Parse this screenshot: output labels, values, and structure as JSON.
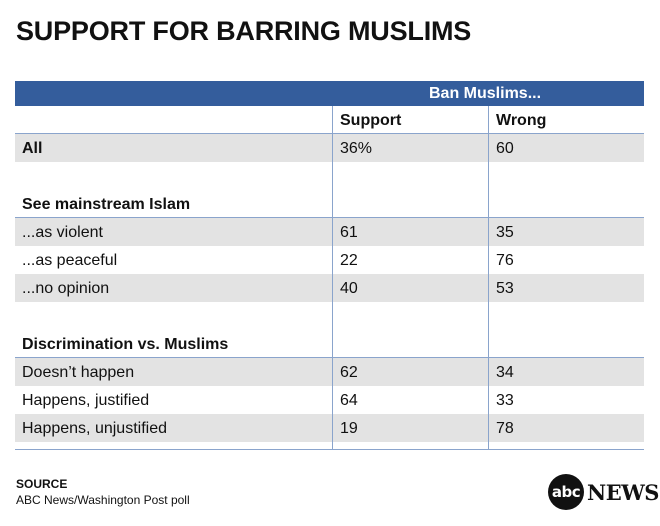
{
  "title": "SUPPORT FOR BARRING MUSLIMS",
  "chart_data": {
    "type": "table",
    "title": "SUPPORT FOR BARRING MUSLIMS",
    "group_header": "Ban Muslims...",
    "columns": [
      "",
      "Support",
      "Wrong"
    ],
    "rows": [
      {
        "label": "All",
        "support": "36%",
        "wrong": "60",
        "bold": true,
        "shaded": true
      },
      {
        "label": "",
        "support": "",
        "wrong": "",
        "spacer": true
      },
      {
        "label": "See mainstream Islam",
        "support": "",
        "wrong": "",
        "bold": true,
        "section": true
      },
      {
        "label": "...as violent",
        "support": "61",
        "wrong": "35",
        "shaded": true
      },
      {
        "label": "...as peaceful",
        "support": "22",
        "wrong": "76"
      },
      {
        "label": "...no opinion",
        "support": "40",
        "wrong": "53",
        "shaded": true
      },
      {
        "label": "",
        "support": "",
        "wrong": "",
        "spacer": true
      },
      {
        "label": "Discrimination vs. Muslims",
        "support": "",
        "wrong": "",
        "bold": true,
        "section": true
      },
      {
        "label": "Doesn’t happen",
        "support": "62",
        "wrong": "34",
        "shaded": true
      },
      {
        "label": "Happens, justified",
        "support": "64",
        "wrong": "33"
      },
      {
        "label": "Happens, unjustified",
        "support": "19",
        "wrong": "78",
        "shaded": true
      }
    ]
  },
  "source": {
    "heading": "SOURCE",
    "text": "ABC News/Washington Post poll"
  },
  "logo": {
    "circle": "abc",
    "word": "NEWS"
  }
}
